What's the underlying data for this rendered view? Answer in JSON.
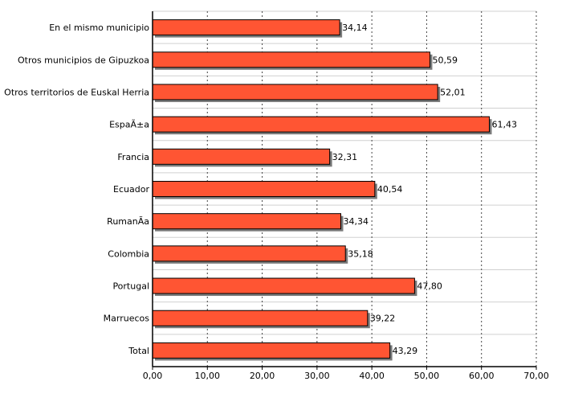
{
  "chart_data": {
    "type": "bar",
    "orientation": "horizontal",
    "categories": [
      "En el mismo municipio",
      "Otros municipios de Gipuzkoa",
      "Otros territorios de Euskal Herria",
      "EspaÃ±a",
      "Francia",
      "Ecuador",
      "RumanÃ­a",
      "Colombia",
      "Portugal",
      "Marruecos",
      "Total"
    ],
    "values": [
      34.14,
      50.59,
      52.01,
      61.43,
      32.31,
      40.54,
      34.34,
      35.18,
      47.8,
      39.22,
      43.29
    ],
    "value_labels": [
      "34,14",
      "50,59",
      "52,01",
      "61,43",
      "32,31",
      "40,54",
      "34,34",
      "35,18",
      "47,80",
      "39,22",
      "43,29"
    ],
    "xlim": [
      0,
      70
    ],
    "xticks": [
      0,
      10,
      20,
      30,
      40,
      50,
      60,
      70
    ],
    "xtick_labels": [
      "0,00",
      "10,00",
      "20,00",
      "30,00",
      "40,00",
      "50,00",
      "60,00",
      "70,00"
    ],
    "title": "",
    "xlabel": "",
    "ylabel": "",
    "grid": "vertical-dotted",
    "bar_color": "#ff5533",
    "bar_edge_color": "#000000",
    "shadow_color": "#7a7a7a"
  }
}
